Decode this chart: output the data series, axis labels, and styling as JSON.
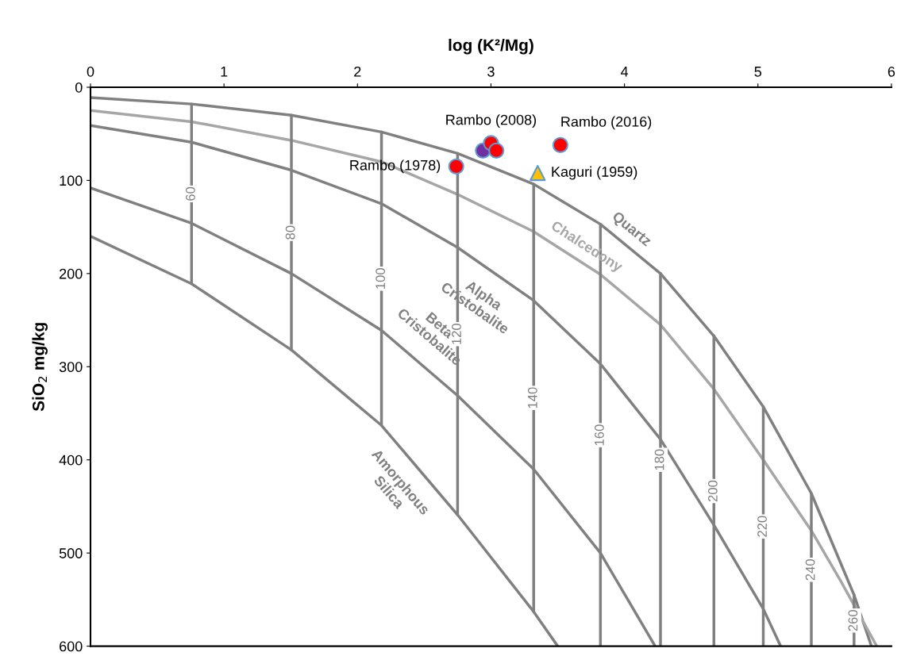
{
  "chart_data": {
    "type": "line",
    "xlabel": "log (K²/Mg)",
    "ylabel": "SiO$_{2}$ mg/kg",
    "xlim": [
      0,
      6
    ],
    "xticks": [
      0,
      1,
      2,
      3,
      4,
      5,
      6
    ],
    "ylim": [
      600,
      0
    ],
    "yticks": [
      0,
      100,
      200,
      300,
      400,
      500,
      600
    ],
    "grid": false,
    "legend": false,
    "marker": "none",
    "line_style": "solid",
    "series": [
      {
        "name": "Quartz",
        "color": "#808080",
        "x": [
          0,
          0.757,
          1.505,
          2.18,
          2.75,
          3.32,
          3.82,
          4.27,
          4.67,
          5.04,
          5.4,
          5.72,
          5.85
        ],
        "values": [
          11,
          18,
          30,
          48,
          71,
          104,
          147,
          200,
          267,
          343,
          436,
          545,
          600
        ]
      },
      {
        "name": "Chalcedony",
        "color": "#a6a6a6",
        "x": [
          0,
          0.757,
          1.505,
          2.18,
          2.75,
          3.32,
          3.82,
          4.27,
          4.67,
          5.04,
          5.4,
          5.62,
          5.89
        ],
        "values": [
          25,
          37,
          57,
          80,
          115,
          155,
          201,
          255,
          324,
          400,
          476,
          530,
          600
        ]
      },
      {
        "name": "Alpha\nCristobalite",
        "color": "#808080",
        "x": [
          0,
          0.757,
          1.505,
          2.18,
          2.75,
          3.32,
          3.82,
          4.27,
          4.67,
          5.04,
          5.17
        ],
        "values": [
          41,
          59,
          89,
          125,
          172,
          229,
          297,
          378,
          470,
          560,
          600
        ]
      },
      {
        "name": "Beta\nCristobalite",
        "color": "#808080",
        "x": [
          0,
          0.757,
          1.505,
          2.18,
          2.75,
          3.32,
          3.82,
          4.23
        ],
        "values": [
          108,
          146,
          200,
          261,
          331,
          410,
          500,
          600
        ]
      },
      {
        "name": "Amorphous\nSilica",
        "color": "#808080",
        "x": [
          0,
          0.757,
          1.505,
          2.18,
          2.75,
          3.32,
          3.5
        ],
        "values": [
          160,
          211,
          282,
          363,
          459,
          563,
          600
        ]
      },
      {
        "name": "60",
        "color": "#808080",
        "x": [
          0.757,
          0.757
        ],
        "values": [
          18,
          211
        ]
      },
      {
        "name": "80",
        "color": "#808080",
        "x": [
          1.505,
          1.505
        ],
        "values": [
          30,
          282
        ]
      },
      {
        "name": "100",
        "color": "#808080",
        "x": [
          2.18,
          2.18
        ],
        "values": [
          48,
          363
        ]
      },
      {
        "name": "120",
        "color": "#808080",
        "x": [
          2.75,
          2.75
        ],
        "values": [
          71,
          459
        ]
      },
      {
        "name": "140",
        "color": "#808080",
        "x": [
          3.32,
          3.32
        ],
        "values": [
          104,
          563
        ]
      },
      {
        "name": "160",
        "color": "#808080",
        "x": [
          3.82,
          3.82
        ],
        "values": [
          147,
          600
        ]
      },
      {
        "name": "180",
        "color": "#808080",
        "x": [
          4.27,
          4.27
        ],
        "values": [
          200,
          600
        ]
      },
      {
        "name": "200",
        "color": "#808080",
        "x": [
          4.67,
          4.67
        ],
        "values": [
          267,
          600
        ]
      },
      {
        "name": "220",
        "color": "#808080",
        "x": [
          5.04,
          5.04
        ],
        "values": [
          343,
          600
        ]
      },
      {
        "name": "240",
        "color": "#808080",
        "x": [
          5.4,
          5.4
        ],
        "values": [
          436,
          600
        ]
      },
      {
        "name": "260",
        "color": "#808080",
        "x": [
          5.72,
          5.72
        ],
        "values": [
          545,
          600
        ]
      },
      {
        "name": "Rambo (2008)",
        "type": "scatter",
        "marker": "circle",
        "colors": [
          "#7030a0",
          "#ff0000",
          "#ff0000"
        ],
        "x": [
          2.94,
          3.0,
          3.04
        ],
        "values": [
          68,
          60,
          68
        ]
      },
      {
        "name": "Rambo (1978)",
        "type": "scatter",
        "marker": "circle",
        "color": "#ff0000",
        "x": [
          2.74
        ],
        "values": [
          85
        ]
      },
      {
        "name": "Rambo (2016)",
        "type": "scatter",
        "marker": "circle",
        "color": "#ff0000",
        "x": [
          3.52
        ],
        "values": [
          62
        ]
      },
      {
        "name": "Kaguri (1959)",
        "type": "scatter",
        "marker": "triangle",
        "color": "#ffc000",
        "x": [
          3.35
        ],
        "values": [
          92
        ]
      }
    ]
  }
}
